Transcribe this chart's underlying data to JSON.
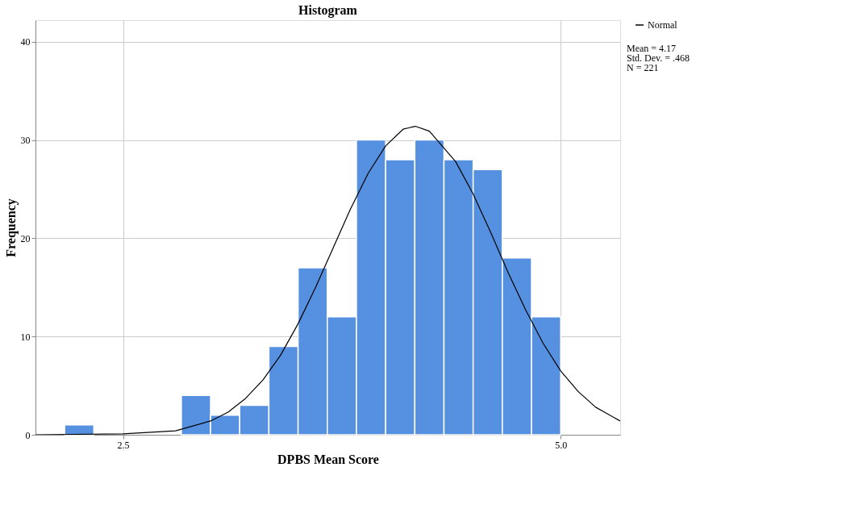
{
  "chart_data": {
    "type": "histogram",
    "title": "Histogram",
    "xlabel": "DPBS Mean Score",
    "ylabel": "Frequency",
    "bins": [
      2.1667,
      2.3333,
      2.5,
      2.6667,
      2.8333,
      3.0,
      3.1667,
      3.3333,
      3.5,
      3.6667,
      3.8333,
      4.0,
      4.1667,
      4.3333,
      4.5,
      4.6667,
      4.8333,
      5.0
    ],
    "values": [
      1,
      0,
      0,
      0,
      4,
      2,
      3,
      9,
      17,
      12,
      30,
      28,
      30,
      28,
      27,
      18,
      12
    ],
    "color": "#5591e0",
    "series": [
      {
        "type": "line",
        "name": "Normal",
        "color": "#000000",
        "x": [
          2.0,
          2.5,
          2.8,
          3.0,
          3.1,
          3.2,
          3.3,
          3.4,
          3.5,
          3.6,
          3.7,
          3.8,
          3.9,
          4.0,
          4.1,
          4.17,
          4.25,
          4.4,
          4.5,
          4.6,
          4.7,
          4.8,
          4.9,
          5.0,
          5.1,
          5.2,
          5.34
        ],
        "values": [
          0.0,
          0.1,
          0.4,
          1.4,
          2.3,
          3.7,
          5.6,
          8.1,
          11.3,
          15.0,
          19.0,
          23.0,
          26.6,
          29.4,
          31.1,
          31.4,
          30.9,
          27.8,
          24.5,
          20.6,
          16.5,
          12.7,
          9.3,
          6.5,
          4.4,
          2.8,
          1.4
        ]
      }
    ],
    "xlim": [
      2.0,
      5.34
    ],
    "xticks": [
      2.5,
      {
        "value": 5.0,
        "label": "5.0"
      }
    ],
    "ylim": [
      0,
      42.2
    ],
    "yticks": [
      0,
      10,
      20,
      30,
      40
    ],
    "grid": true,
    "legend": "top right",
    "annotations": [
      "Mean = 4.17",
      "Std. Dev. = .468",
      "N = 221"
    ]
  }
}
